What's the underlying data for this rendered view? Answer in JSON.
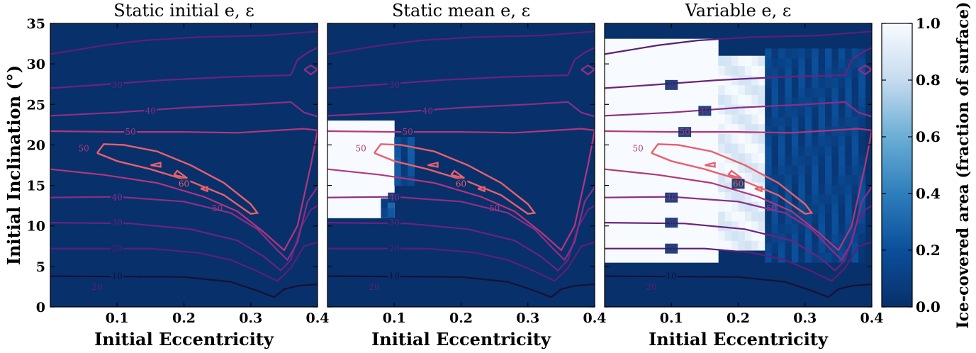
{
  "chart_data": [
    {
      "type": "heatmap",
      "title": "Static initial e, ε",
      "xlabel": "Initial Eccentricity",
      "ylabel": "Initial Inclination (°)",
      "xlim": [
        0,
        0.4
      ],
      "ylim": [
        0,
        35
      ],
      "xticks": [
        "0.1",
        "0.2",
        "0.3",
        "0.4"
      ],
      "yticks": [
        "0",
        "5",
        "10",
        "15",
        "20",
        "25",
        "30",
        "35"
      ],
      "ice_regions": [],
      "contour_labels": [
        "10",
        "20",
        "30",
        "40",
        "50",
        "60"
      ]
    },
    {
      "type": "heatmap",
      "title": "Static mean e, ε",
      "xlabel": "Initial Eccentricity",
      "xlim": [
        0,
        0.4
      ],
      "ylim": [
        0,
        35
      ],
      "xticks": [
        "0.1",
        "0.2",
        "0.3",
        "0.4"
      ],
      "ice_regions": [
        {
          "e_range": [
            0.0,
            0.1
          ],
          "i_range": [
            11,
            23
          ],
          "ice_fraction": 1.0
        },
        {
          "e_range": [
            0.1,
            0.13
          ],
          "i_range": [
            15,
            21
          ],
          "ice_fraction": 0.15
        },
        {
          "e_range": [
            0.08,
            0.1
          ],
          "i_range": [
            11,
            13
          ],
          "ice_fraction": 0.2
        }
      ],
      "contour_labels": [
        "10",
        "20",
        "30",
        "40",
        "50",
        "60"
      ]
    },
    {
      "type": "heatmap",
      "title": "Variable e, ε",
      "xlabel": "Initial Eccentricity",
      "xlim": [
        0,
        0.4
      ],
      "ylim": [
        0,
        35
      ],
      "xticks": [
        "0.1",
        "0.2",
        "0.3",
        "0.4"
      ],
      "ice_regions": [
        {
          "e_range": [
            0.0,
            0.17
          ],
          "i_range": [
            5.5,
            32
          ],
          "ice_fraction": 1.0
        },
        {
          "e_range": [
            0.17,
            0.24
          ],
          "i_range": [
            7,
            31
          ],
          "ice_fraction": 0.95
        },
        {
          "e_range": [
            0.24,
            0.39
          ],
          "i_range": [
            5.5,
            31
          ],
          "ice_fraction": 0.12
        }
      ],
      "contour_labels": [
        "10",
        "20",
        "30",
        "40",
        "50",
        "60"
      ]
    }
  ],
  "colorbar": {
    "label": "Ice-covered area (fraction of surface)",
    "ticks": [
      "0.0",
      "0.2",
      "0.4",
      "0.6",
      "0.8",
      "1.0"
    ],
    "range": [
      0,
      1
    ]
  },
  "colors": {
    "background_field": "#08306b",
    "ice_full": "#f7fbff",
    "contour_10": "#1a1033",
    "contour_20": "#5b1f78",
    "contour_30": "#6a237f",
    "contour_40": "#8a2f86",
    "contour_50": "#b3367c",
    "contour_60": "#e8606c"
  }
}
